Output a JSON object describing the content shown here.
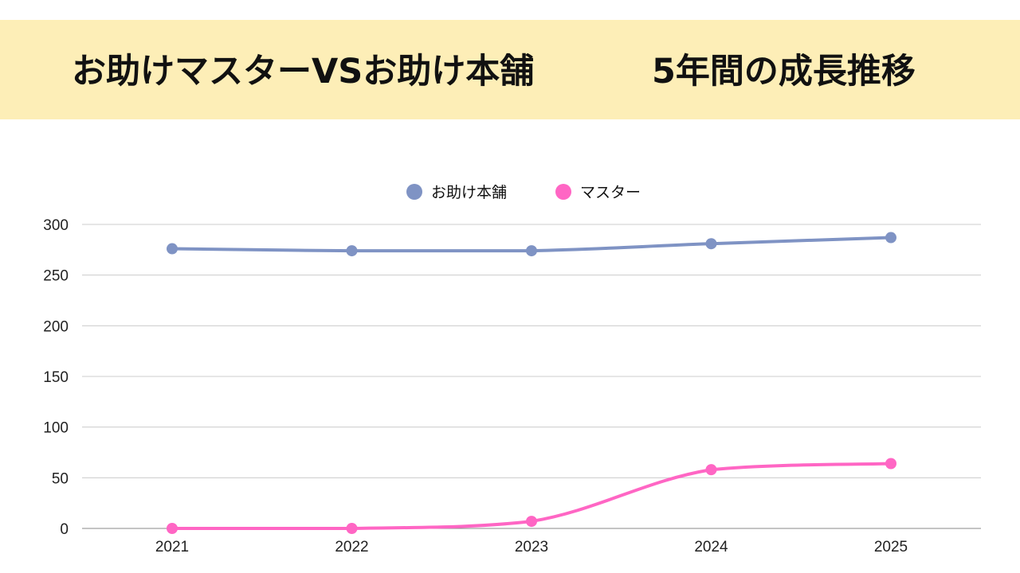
{
  "header": {
    "title_left": "お助けマスターVSお助け本舗",
    "title_right": "5年間の成長推移"
  },
  "chart_data": {
    "type": "line",
    "title": "お助けマスターVSお助け本舗　5年間の成長推移",
    "categories": [
      "2021",
      "2022",
      "2023",
      "2024",
      "2025"
    ],
    "series": [
      {
        "name": "お助け本舗",
        "color": "#7f93c4",
        "values": [
          276,
          274,
          274,
          281,
          287
        ]
      },
      {
        "name": "マスター",
        "color": "#ff66c4",
        "values": [
          0,
          0,
          7,
          58,
          64
        ]
      }
    ],
    "ylim": [
      0,
      300
    ],
    "yticks": [
      "0",
      "50",
      "100",
      "150",
      "200",
      "250",
      "300"
    ],
    "xlabel": "",
    "ylabel": "",
    "grid": true,
    "legend": "top-center"
  }
}
